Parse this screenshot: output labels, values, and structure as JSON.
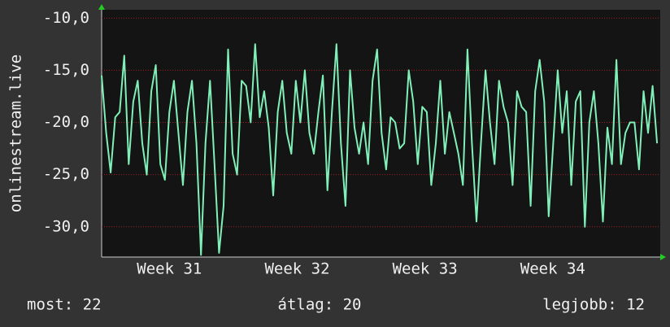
{
  "chart_data": {
    "type": "line",
    "y_label": "onlinestream.live",
    "series": [
      {
        "name": "onlinestream.live",
        "color": "#80f0b8",
        "values": [
          -15.5,
          -21,
          -24.8,
          -19.5,
          -19,
          -13.6,
          -24,
          -18,
          -16,
          -22,
          -25,
          -17,
          -14.5,
          -24,
          -25.5,
          -19,
          -16,
          -21,
          -26,
          -19,
          -16,
          -22,
          -32.7,
          -22,
          -16,
          -24,
          -32.5,
          -28,
          -13,
          -23,
          -25,
          -16,
          -16.5,
          -20,
          -12.5,
          -19.5,
          -17,
          -20.5,
          -27,
          -19,
          -16,
          -21,
          -23,
          -16,
          -20,
          -15,
          -21,
          -23,
          -19,
          -15.5,
          -26.5,
          -19,
          -12.5,
          -22,
          -28,
          -15,
          -20.5,
          -23,
          -20,
          -24,
          -16,
          -13,
          -21,
          -24.5,
          -19.5,
          -20,
          -22.5,
          -22,
          -15,
          -18,
          -24,
          -18.5,
          -19,
          -26,
          -22,
          -16,
          -23,
          -19,
          -21,
          -23,
          -26,
          -13,
          -22,
          -29.5,
          -22,
          -15,
          -20,
          -24,
          -16,
          -18.5,
          -20,
          -26,
          -17,
          -18.5,
          -19,
          -28,
          -17,
          -14,
          -18,
          -29,
          -22,
          -15,
          -21,
          -17,
          -26,
          -18,
          -17,
          -30,
          -20,
          -17,
          -22,
          -29.5,
          -20.5,
          -24,
          -14,
          -24,
          -21,
          -20,
          -20,
          -24.5,
          -17,
          -21,
          -16.5,
          -22
        ]
      }
    ],
    "xlim": [
      0,
      123.7
    ],
    "xticks": [
      {
        "value": 15,
        "label": "Week 31"
      },
      {
        "value": 43.3,
        "label": "Week 32"
      },
      {
        "value": 71.6,
        "label": "Week 33"
      },
      {
        "value": 99.9,
        "label": "Week 34"
      }
    ],
    "ylim": [
      -32.9,
      -9.2
    ],
    "yticks": [
      {
        "value": -10,
        "label": "-10,0"
      },
      {
        "value": -15,
        "label": "-15,0"
      },
      {
        "value": -20,
        "label": "-20,0"
      },
      {
        "value": -25,
        "label": "-25,0"
      },
      {
        "value": -30,
        "label": "-30,0"
      }
    ],
    "grid": true,
    "footer": [
      "most: 22",
      "átlag: 20",
      "legjobb: 12"
    ]
  }
}
